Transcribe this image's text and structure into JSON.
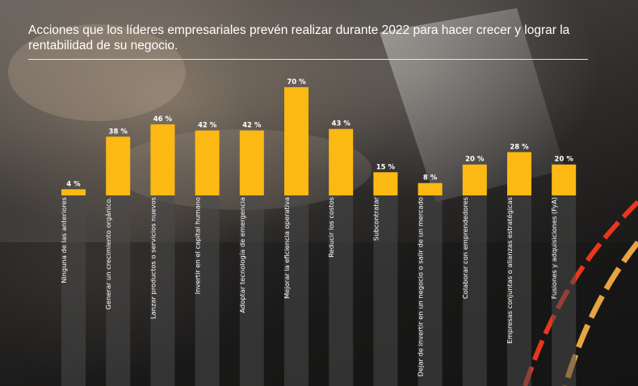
{
  "chart_data": {
    "type": "bar",
    "title": "Acciones que los líderes empresariales prevén realizar durante 2022 para hacer crecer y lograr la rentabilidad de su negocio.",
    "xlabel": "",
    "ylabel": "",
    "categories": [
      "Ninguna de las anteriores",
      "Generar un crecimiento orgánico.",
      "Lanzar productos o servicios nuevos",
      "Invertir en el capital humano",
      "Adoptar tecnología de emergencia",
      "Mejorar la eficiencia operativa",
      "Reducir los costos",
      "Subcontratar",
      "Dejar de invertir en un negocio o salir de un mercado",
      "Colaborar con emprendedores",
      "Empresas conjuntas o alianzas estratégicas",
      "Fusiones y adquisiciones (FyA)"
    ],
    "values": [
      4,
      38,
      46,
      42,
      42,
      70,
      43,
      15,
      8,
      20,
      28,
      20
    ],
    "value_labels": [
      "4 %",
      "38 %",
      "46 %",
      "42 %",
      "42 %",
      "70 %",
      "43 %",
      "15 %",
      "8 %",
      "20 %",
      "28 %",
      "20 %"
    ],
    "ylim": [
      0,
      70
    ],
    "grid": false,
    "legend": "none",
    "colors": {
      "bar": "#FDB913",
      "shadow": "#4a4a4a",
      "text": "#ffffff"
    }
  }
}
